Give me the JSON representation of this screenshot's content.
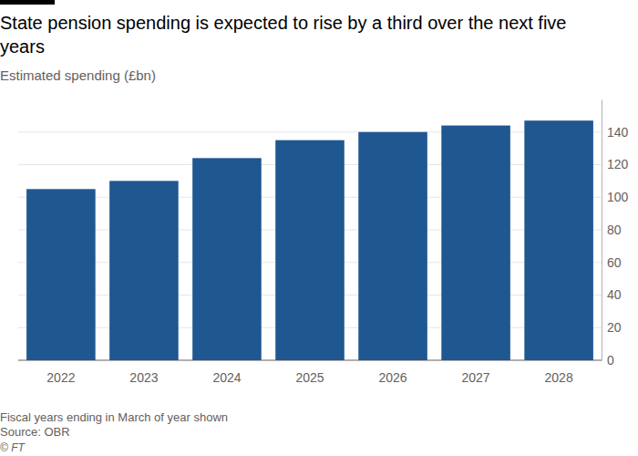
{
  "chart_data": {
    "type": "bar",
    "title": "State pension spending is expected to rise by a third over the next five years",
    "subtitle": "Estimated spending (£bn)",
    "categories": [
      "2022",
      "2023",
      "2024",
      "2025",
      "2026",
      "2027",
      "2028"
    ],
    "values": [
      105,
      110,
      124,
      135,
      140,
      144,
      147
    ],
    "color": "#1f5790",
    "ylim": [
      0,
      160
    ],
    "yticks": [
      0,
      20,
      40,
      60,
      80,
      100,
      120,
      140
    ],
    "grid": true,
    "note": "Fiscal years ending in March of year shown",
    "source": "Source: OBR",
    "credit": "© FT"
  }
}
